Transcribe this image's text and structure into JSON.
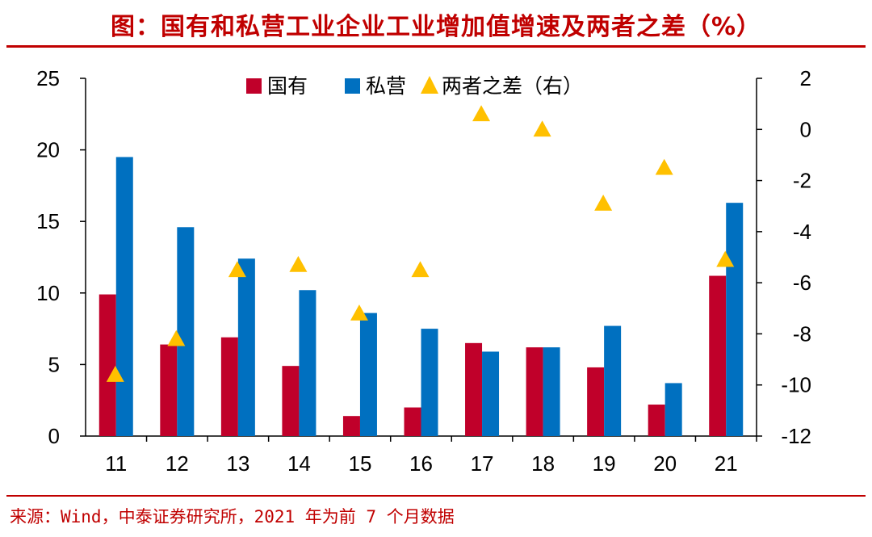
{
  "title": "图：国有和私营工业企业工业增加值增速及两者之差（%）",
  "source": "来源：Wind，中泰证券研究所，2021 年为前 7 个月数据",
  "colors": {
    "accent": "#c00000",
    "state": "#c0002a",
    "private": "#0070c0",
    "diff": "#ffc000"
  },
  "chart_data": {
    "type": "bar",
    "categories": [
      "11",
      "12",
      "13",
      "14",
      "15",
      "16",
      "17",
      "18",
      "19",
      "20",
      "21"
    ],
    "series": [
      {
        "name": "国有",
        "type": "bar",
        "axis": "left",
        "values": [
          9.9,
          6.4,
          6.9,
          4.9,
          1.4,
          2.0,
          6.5,
          6.2,
          4.8,
          2.2,
          11.2
        ]
      },
      {
        "name": "私营",
        "type": "bar",
        "axis": "left",
        "values": [
          19.5,
          14.6,
          12.4,
          10.2,
          8.6,
          7.5,
          5.9,
          6.2,
          7.7,
          3.7,
          16.3
        ]
      },
      {
        "name": "两者之差（右）",
        "type": "scatter",
        "axis": "right",
        "values": [
          -9.6,
          -8.2,
          -5.5,
          -5.3,
          -7.2,
          -5.5,
          0.6,
          0.0,
          -2.9,
          -1.5,
          -5.1
        ]
      }
    ],
    "y_left": {
      "ylim": [
        0,
        25
      ],
      "ticks": [
        "0",
        "5",
        "10",
        "15",
        "20",
        "25"
      ]
    },
    "y_right": {
      "ylim": [
        -12,
        2
      ],
      "ticks": [
        "-12",
        "-10",
        "-8",
        "-6",
        "-4",
        "-2",
        "0",
        "2"
      ]
    },
    "legend": "top-center",
    "grid": false
  }
}
